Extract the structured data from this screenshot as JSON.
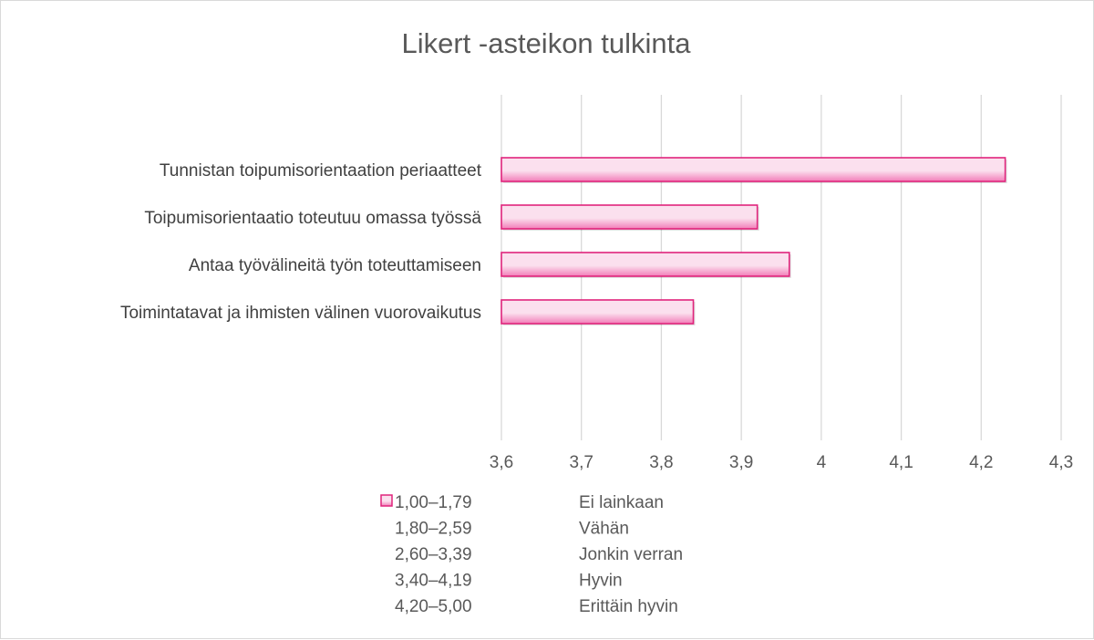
{
  "chart_data": {
    "type": "bar",
    "orientation": "horizontal",
    "title": "Likert -asteikon tulkinta",
    "categories": [
      "Tunnistan toipumisorientaation periaatteet",
      "Toipumisorientaatio toteutuu omassa työssä",
      "Antaa työvälineitä työn toteuttamiseen",
      "Toimintatavat ja ihmisten välinen vuorovaikutus"
    ],
    "values": [
      4.23,
      3.92,
      3.96,
      3.84
    ],
    "xlim": [
      3.6,
      4.3
    ],
    "ticks": [
      "3,6",
      "3,7",
      "3,8",
      "3,9",
      "4",
      "4,1",
      "4,2",
      "4,3"
    ],
    "grid": true,
    "legend_position": "bottom",
    "legend": [
      {
        "range": "1,00–1,79",
        "label": "Ei lainkaan",
        "marker": true
      },
      {
        "range": "1,80–2,59",
        "label": "Vähän",
        "marker": false
      },
      {
        "range": "2,60–3,39",
        "label": "Jonkin verran",
        "marker": false
      },
      {
        "range": "3,40–4,19",
        "label": "Hyvin",
        "marker": false
      },
      {
        "range": "4,20–5,00",
        "label": "Erittäin hyvin",
        "marker": false
      }
    ],
    "colors": {
      "bar_fill_light": "#fbe0ee",
      "bar_fill_dark": "#f27db8",
      "bar_stroke": "#e0247c",
      "grid": "#d9d9d9",
      "text": "#595959"
    }
  }
}
